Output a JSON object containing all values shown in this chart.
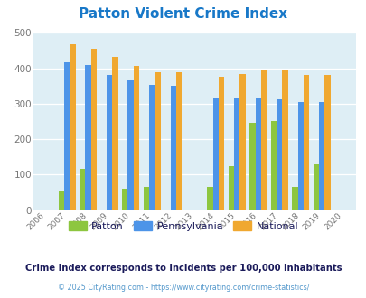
{
  "title": "Patton Violent Crime Index",
  "title_color": "#1878c8",
  "years": [
    2006,
    2007,
    2008,
    2009,
    2010,
    2011,
    2012,
    2013,
    2014,
    2015,
    2016,
    2017,
    2018,
    2019,
    2020
  ],
  "patton": [
    0,
    55,
    115,
    0,
    60,
    65,
    0,
    0,
    65,
    125,
    245,
    250,
    65,
    130,
    0
  ],
  "pennsylvania": [
    0,
    418,
    408,
    380,
    366,
    354,
    350,
    0,
    316,
    315,
    316,
    312,
    305,
    305,
    0
  ],
  "national": [
    0,
    467,
    455,
    432,
    406,
    388,
    389,
    0,
    377,
    383,
    397,
    394,
    380,
    380,
    0
  ],
  "bar_colors": {
    "patton": "#8dc63f",
    "pennsylvania": "#4d94e8",
    "national": "#f0a830"
  },
  "bg_color": "#deeef5",
  "ylim": [
    0,
    500
  ],
  "yticks": [
    0,
    100,
    200,
    300,
    400,
    500
  ],
  "subtitle": "Crime Index corresponds to incidents per 100,000 inhabitants",
  "subtitle_color": "#1a1a5a",
  "footer": "© 2025 CityRating.com - https://www.cityrating.com/crime-statistics/",
  "footer_color": "#5599cc",
  "legend_labels": [
    "Patton",
    "Pennsylvania",
    "National"
  ]
}
